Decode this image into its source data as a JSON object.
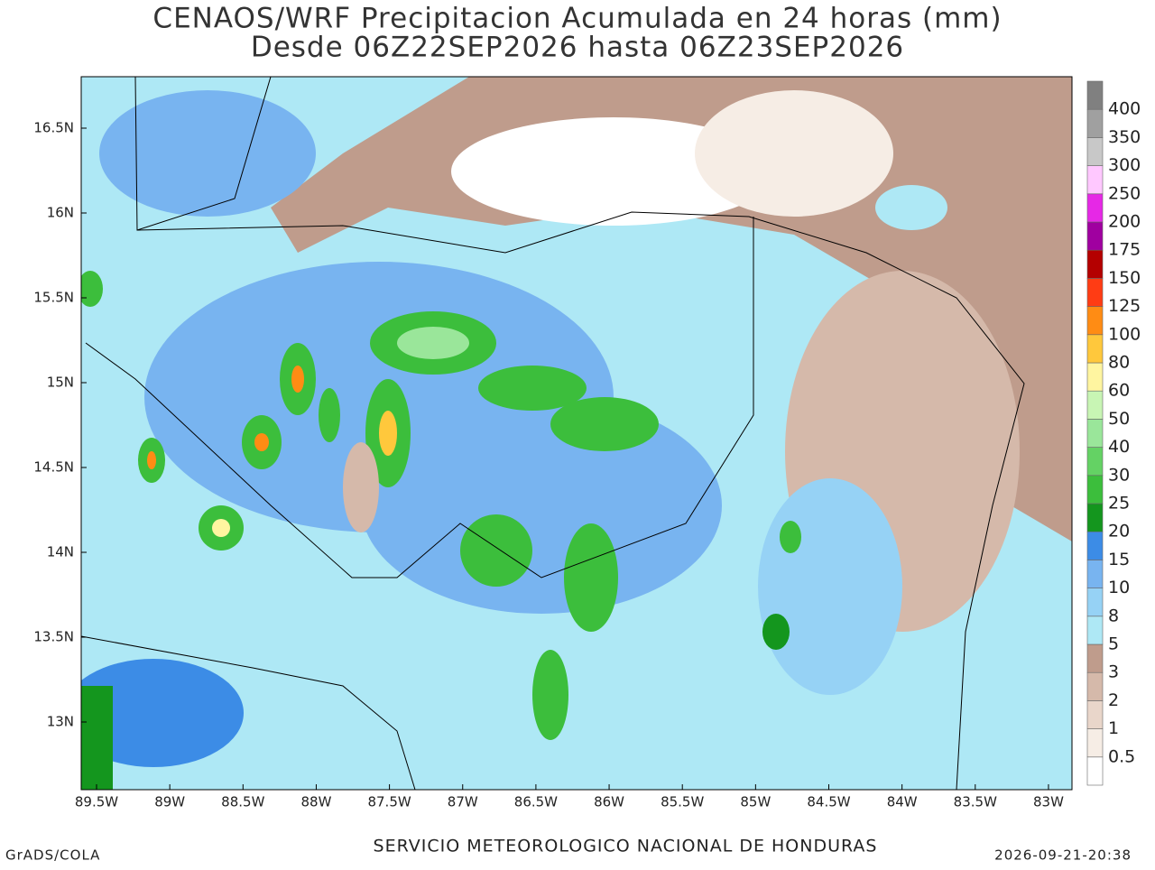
{
  "header": {
    "title": "CENAOS/WRF Precipitacion Acumulada en 24 horas (mm)",
    "subtitle": "Desde 06Z22SEP2026 hasta 06Z23SEP2026"
  },
  "map": {
    "lon_labels": [
      "89.5W",
      "89W",
      "88.5W",
      "88W",
      "87.5W",
      "87W",
      "86.5W",
      "86W",
      "85.5W",
      "85W",
      "84.5W",
      "84W",
      "83.5W",
      "83W"
    ],
    "lat_labels": [
      "16.5N",
      "16N",
      "15.5N",
      "15N",
      "14.5N",
      "14N",
      "13.5N",
      "13N"
    ]
  },
  "colorbar": {
    "levels": [
      0.5,
      1,
      2,
      3,
      5,
      8,
      10,
      15,
      20,
      25,
      30,
      40,
      50,
      60,
      80,
      100,
      125,
      150,
      175,
      200,
      250,
      300,
      350,
      400
    ],
    "colors": [
      "#ffffff",
      "#f6ede5",
      "#e9d6ca",
      "#d5b9aa",
      "#bf9c8c",
      "#aee8f5",
      "#96d2f5",
      "#78b4f0",
      "#3c8ce6",
      "#14961e",
      "#3cbe3c",
      "#64d264",
      "#9ae69a",
      "#c8f5b4",
      "#fff5a0",
      "#ffc83c",
      "#ff8c14",
      "#ff3c14",
      "#b40000",
      "#a000a0",
      "#e628e6",
      "#ffc8ff",
      "#c8c8c8",
      "#a0a0a0",
      "#808080"
    ]
  },
  "footer": {
    "left": "GrADS/COLA",
    "center": "SERVICIO METEOROLOGICO NACIONAL DE HONDURAS",
    "right": "2026-09-21-20:38"
  }
}
